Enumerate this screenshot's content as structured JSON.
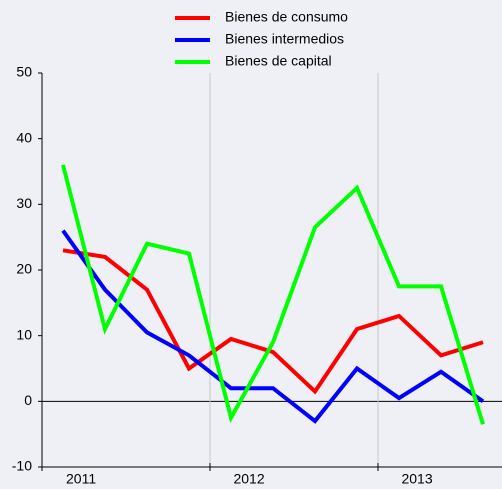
{
  "chart_data": {
    "type": "line",
    "categories": [
      "2011",
      null,
      null,
      null,
      "2012",
      null,
      null,
      null,
      "2013",
      null,
      null
    ],
    "series": [
      {
        "name": "Bienes de consumo",
        "color": "#ff0000",
        "values": [
          23,
          22,
          17,
          5,
          9.5,
          7.5,
          1.5,
          11,
          13,
          7,
          9
        ]
      },
      {
        "name": "Bienes intermedios",
        "color": "#0000ff",
        "values": [
          26,
          17,
          10.5,
          7,
          2,
          2,
          -3,
          5,
          0.5,
          4.5,
          0
        ]
      },
      {
        "name": "Bienes de capital",
        "color": "#00ff00",
        "values": [
          36,
          11,
          24,
          22.5,
          -2.5,
          9,
          26.5,
          32.5,
          17.5,
          17.5,
          -3.5
        ]
      }
    ],
    "ylim": [
      -10,
      50
    ],
    "yticks": [
      -10,
      0,
      10,
      20,
      30,
      40,
      50
    ],
    "legend": "top"
  }
}
